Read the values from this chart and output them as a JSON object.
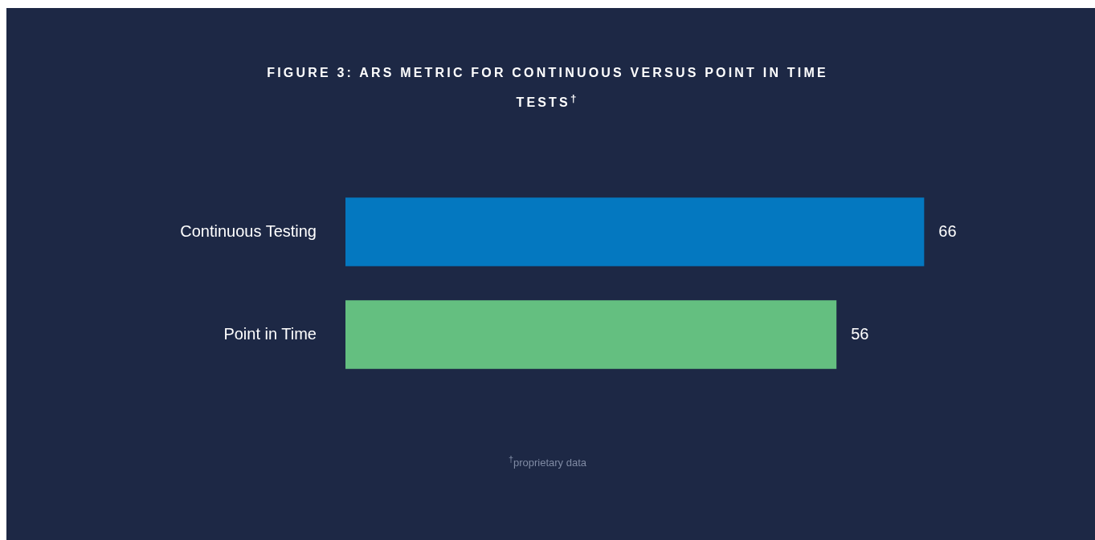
{
  "chart_data": {
    "type": "bar",
    "orientation": "horizontal",
    "title": "FIGURE 3: ARS METRIC FOR CONTINUOUS VERSUS POINT IN TIME TESTS$^{†}$",
    "categories": [
      "Continuous Testing",
      "Point in Time"
    ],
    "values": [
      66,
      56
    ],
    "colors": [
      "#0478c0",
      "#64bf80"
    ],
    "data_labels": true,
    "grid": false,
    "legend": false,
    "annotations": [
      "$^{†}$proprietary data"
    ]
  }
}
